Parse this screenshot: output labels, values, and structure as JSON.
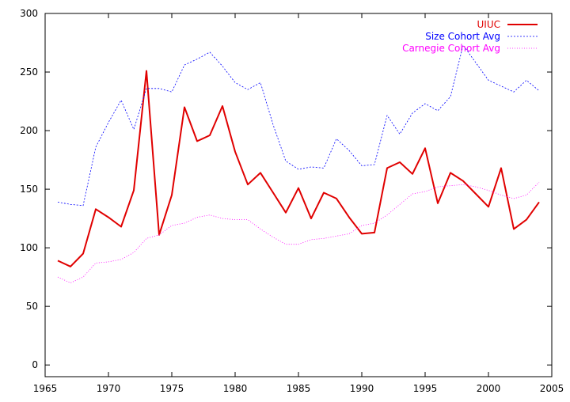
{
  "chart_data": {
    "type": "line",
    "title": "",
    "xlabel": "",
    "ylabel": "",
    "xlim": [
      1965,
      2005
    ],
    "ylim": [
      -10,
      300
    ],
    "x_ticks": [
      1965,
      1970,
      1975,
      1980,
      1985,
      1990,
      1995,
      2000,
      2005
    ],
    "y_ticks": [
      0,
      50,
      100,
      150,
      200,
      250,
      300
    ],
    "grid": false,
    "legend_position": "top-right",
    "series": [
      {
        "name": "UIUC",
        "color": "#e00000",
        "style": "solid",
        "x": [
          1966,
          1967,
          1968,
          1969,
          1970,
          1971,
          1972,
          1973,
          1974,
          1975,
          1976,
          1977,
          1978,
          1979,
          1980,
          1981,
          1982,
          1983,
          1984,
          1985,
          1986,
          1987,
          1988,
          1989,
          1990,
          1991,
          1992,
          1993,
          1994,
          1995,
          1996,
          1997,
          1998,
          1999,
          2000,
          2001,
          2002,
          2003,
          2004
        ],
        "y": [
          89,
          84,
          95,
          133,
          126,
          118,
          149,
          251,
          111,
          145,
          220,
          191,
          196,
          221,
          182,
          154,
          164,
          147,
          130,
          151,
          125,
          147,
          142,
          126,
          112,
          113,
          168,
          173,
          163,
          185,
          138,
          164,
          157,
          146,
          135,
          168,
          116,
          124,
          139
        ]
      },
      {
        "name": "Size Cohort Avg",
        "color": "#0000ff",
        "style": "dashed",
        "x": [
          1966,
          1967,
          1968,
          1969,
          1970,
          1971,
          1972,
          1973,
          1974,
          1975,
          1976,
          1977,
          1978,
          1979,
          1980,
          1981,
          1982,
          1983,
          1984,
          1985,
          1986,
          1987,
          1988,
          1989,
          1990,
          1991,
          1992,
          1993,
          1994,
          1995,
          1996,
          1997,
          1998,
          1999,
          2000,
          2001,
          2002,
          2003,
          2004
        ],
        "y": [
          139,
          137,
          136,
          186,
          207,
          226,
          201,
          236,
          236,
          233,
          256,
          261,
          267,
          255,
          241,
          235,
          241,
          205,
          174,
          167,
          169,
          168,
          193,
          183,
          170,
          171,
          213,
          197,
          215,
          223,
          217,
          229,
          273,
          258,
          243,
          238,
          233,
          243,
          234
        ]
      },
      {
        "name": "Carnegie Cohort Avg",
        "color": "#ff00ff",
        "style": "dotted",
        "x": [
          1966,
          1967,
          1968,
          1969,
          1970,
          1971,
          1972,
          1973,
          1974,
          1975,
          1976,
          1977,
          1978,
          1979,
          1980,
          1981,
          1982,
          1983,
          1984,
          1985,
          1986,
          1987,
          1988,
          1989,
          1990,
          1991,
          1992,
          1993,
          1994,
          1995,
          1996,
          1997,
          1998,
          1999,
          2000,
          2001,
          2002,
          2003,
          2004
        ],
        "y": [
          75,
          70,
          75,
          87,
          88,
          90,
          96,
          108,
          111,
          119,
          121,
          126,
          128,
          125,
          124,
          124,
          116,
          109,
          103,
          103,
          107,
          108,
          110,
          112,
          119,
          121,
          128,
          137,
          146,
          148,
          152,
          153,
          154,
          152,
          149,
          145,
          142,
          145,
          156
        ]
      }
    ]
  }
}
